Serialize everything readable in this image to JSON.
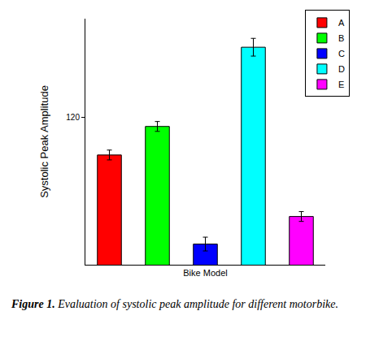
{
  "chart_data": {
    "type": "bar",
    "xlabel": "Bike Model",
    "ylabel": "Systolic Peak Amplitude",
    "categories": [
      "A",
      "B",
      "C",
      "D",
      "E"
    ],
    "values": [
      112.3,
      118.1,
      94.2,
      134.2,
      99.8
    ],
    "errors": [
      1.0,
      1.0,
      1.4,
      1.8,
      1.0
    ],
    "colors": [
      "#ff0000",
      "#00ff00",
      "#0000ff",
      "#00ffff",
      "#ff00ff"
    ],
    "ylim": [
      90,
      140
    ],
    "yticks": [
      120
    ],
    "grid": false,
    "legend": "upper right",
    "tick_labels": "y"
  },
  "caption": {
    "label": "Figure 1.",
    "text": "Evaluation of systolic peak amplitude for different motorbike."
  }
}
